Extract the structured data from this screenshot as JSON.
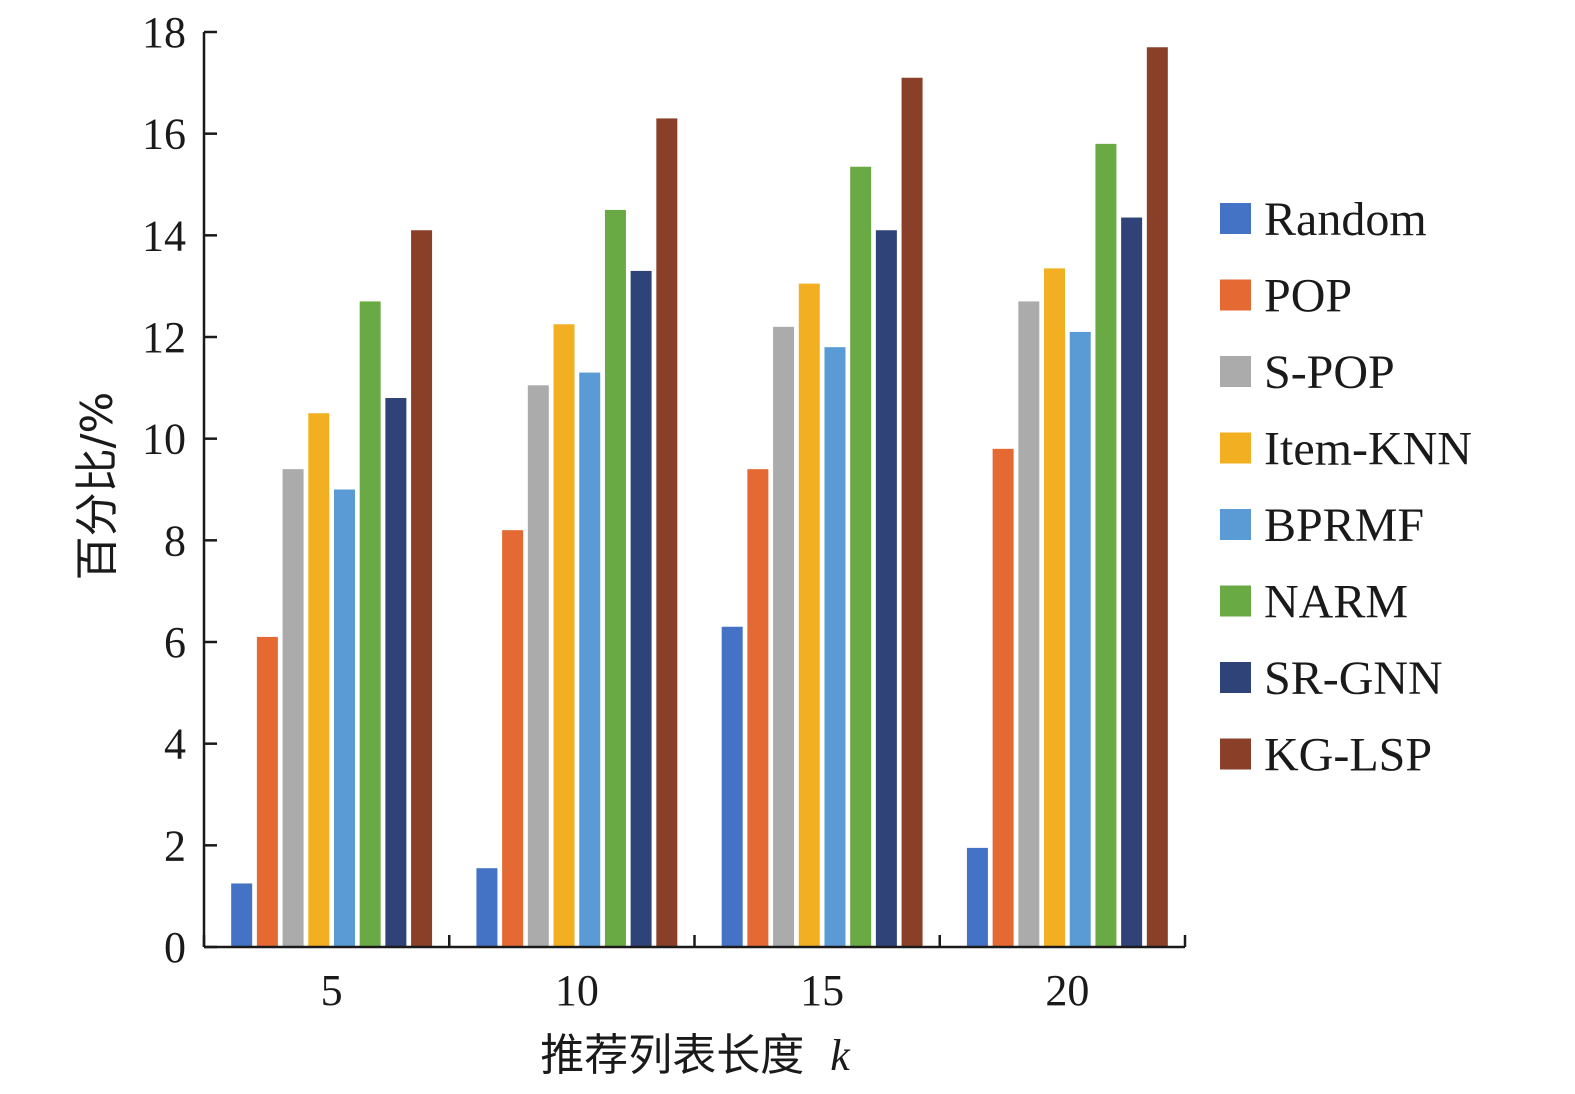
{
  "chart_data": {
    "type": "bar",
    "title": "",
    "xlabel": "推荐列表长度",
    "xlabel_var": "k",
    "ylabel": "百分比/%",
    "ylim": [
      0,
      18
    ],
    "yticks": [
      0,
      2,
      4,
      6,
      8,
      10,
      12,
      14,
      16,
      18
    ],
    "categories": [
      "5",
      "10",
      "15",
      "20"
    ],
    "legend_position": "right",
    "series": [
      {
        "name": "Random",
        "color": "#4472C4",
        "values": [
          1.25,
          1.55,
          6.3,
          1.95
        ]
      },
      {
        "name": "POP",
        "color": "#E46932",
        "values": [
          6.1,
          8.2,
          9.4,
          9.8
        ]
      },
      {
        "name": "S-POP",
        "color": "#ABABAB",
        "values": [
          9.4,
          11.05,
          12.2,
          12.7
        ]
      },
      {
        "name": "Item-KNN",
        "color": "#F2AF22",
        "values": [
          10.5,
          12.25,
          13.05,
          13.35
        ]
      },
      {
        "name": "BPRMF",
        "color": "#5B9BD5",
        "values": [
          9.0,
          11.3,
          11.8,
          12.1
        ]
      },
      {
        "name": "NARM",
        "color": "#6AAA45",
        "values": [
          12.7,
          14.5,
          15.35,
          15.8
        ]
      },
      {
        "name": "SR-GNN",
        "color": "#2F4379",
        "values": [
          10.8,
          13.3,
          14.1,
          14.35
        ]
      },
      {
        "name": "KG-LSP",
        "color": "#8A4028",
        "values": [
          14.1,
          16.3,
          17.1,
          17.7
        ]
      }
    ]
  }
}
